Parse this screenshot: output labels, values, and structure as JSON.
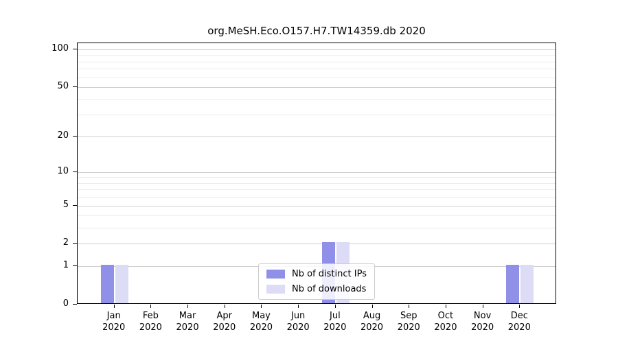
{
  "chart_data": {
    "type": "bar",
    "title": "org.MeSH.Eco.O157.H7.TW14359.db 2020",
    "categories": [
      "Jan",
      "Feb",
      "Mar",
      "Apr",
      "May",
      "Jun",
      "Jul",
      "Aug",
      "Sep",
      "Oct",
      "Nov",
      "Dec"
    ],
    "year": "2020",
    "series": [
      {
        "name": "Nb of distinct IPs",
        "color": "#9190e8",
        "values": [
          1,
          0,
          0,
          0,
          0,
          0,
          2,
          0,
          0,
          0,
          0,
          1
        ]
      },
      {
        "name": "Nb of downloads",
        "color": "#dcdcf7",
        "values": [
          1,
          0,
          0,
          0,
          0,
          0,
          2,
          0,
          0,
          0,
          0,
          1
        ]
      }
    ],
    "y_scale": "log10(1+x)",
    "ylim": [
      0,
      100
    ],
    "y_major_ticks": [
      0,
      1,
      2,
      5,
      10,
      20,
      50,
      100
    ],
    "y_minor_ticks": [
      3,
      4,
      6,
      7,
      8,
      9,
      30,
      40,
      60,
      70,
      80,
      90
    ],
    "grid": "horizontal",
    "legend_position": "bottom-center"
  }
}
